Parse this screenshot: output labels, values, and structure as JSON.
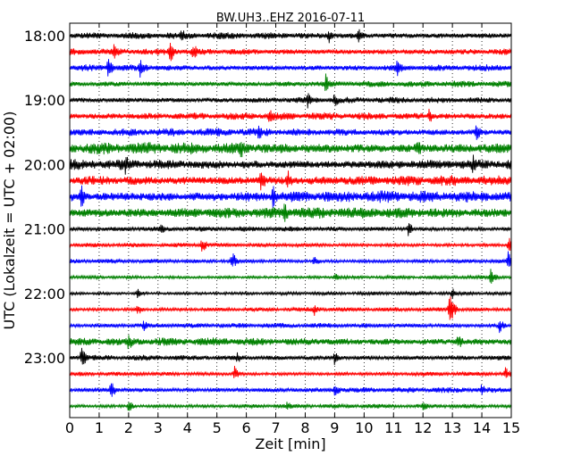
{
  "chart_data": {
    "type": "line",
    "title": "BW.UH3..EHZ 2016-07-11",
    "xlabel": "Zeit  [min]",
    "ylabel": "UTC (Lokalzeit = UTC + 02:00)",
    "xlim": [
      0,
      15
    ],
    "x_ticks": [
      "0",
      "1",
      "2",
      "3",
      "4",
      "5",
      "6",
      "7",
      "8",
      "9",
      "10",
      "11",
      "12",
      "13",
      "14",
      "15"
    ],
    "y_tick_labels": [
      "18:00",
      "19:00",
      "20:00",
      "21:00",
      "22:00",
      "23:00"
    ],
    "grid": "vertical-dotted",
    "trace_colors": [
      "#000000",
      "#ff0000",
      "#0000ff",
      "#008000"
    ],
    "series": [
      {
        "start": "17:45",
        "amplitude": 0.55,
        "color": "#000000",
        "events": [
          [
            3.8,
            1.4
          ],
          [
            8.8,
            1.6
          ],
          [
            9.8,
            1.4
          ]
        ]
      },
      {
        "start": "18:00",
        "amplitude": 0.55,
        "color": "#ff0000",
        "events": [
          [
            1.5,
            1.8
          ],
          [
            3.4,
            2.2
          ],
          [
            4.2,
            1.6
          ]
        ]
      },
      {
        "start": "18:15",
        "amplitude": 0.55,
        "color": "#0000ff",
        "events": [
          [
            1.3,
            1.9
          ],
          [
            2.4,
            2.2
          ],
          [
            11.1,
            1.9
          ]
        ]
      },
      {
        "start": "18:30",
        "amplitude": 0.5,
        "color": "#008000",
        "events": [
          [
            8.7,
            2.0
          ]
        ]
      },
      {
        "start": "18:45",
        "amplitude": 0.5,
        "color": "#000000",
        "events": [
          [
            8.1,
            2.0
          ],
          [
            9.0,
            1.6
          ]
        ]
      },
      {
        "start": "19:00",
        "amplitude": 0.6,
        "color": "#ff0000",
        "events": [
          [
            6.8,
            1.6
          ],
          [
            12.2,
            1.4
          ]
        ]
      },
      {
        "start": "19:15",
        "amplitude": 0.65,
        "color": "#0000ff",
        "events": [
          [
            6.4,
            1.4
          ],
          [
            13.8,
            1.4
          ]
        ]
      },
      {
        "start": "19:30",
        "amplitude": 0.95,
        "color": "#008000",
        "events": [
          [
            5.8,
            1.2
          ],
          [
            11.8,
            1.2
          ]
        ]
      },
      {
        "start": "19:45",
        "amplitude": 0.85,
        "color": "#000000",
        "events": [
          [
            1.9,
            1.3
          ],
          [
            13.7,
            1.2
          ]
        ]
      },
      {
        "start": "20:00",
        "amplitude": 0.85,
        "color": "#ff0000",
        "events": [
          [
            6.5,
            1.4
          ],
          [
            7.4,
            1.3
          ]
        ]
      },
      {
        "start": "20:15",
        "amplitude": 0.95,
        "color": "#0000ff",
        "events": [
          [
            6.9,
            1.4
          ],
          [
            0.4,
            1.3
          ]
        ]
      },
      {
        "start": "20:30",
        "amplitude": 0.9,
        "color": "#008000",
        "events": [
          [
            7.3,
            1.3
          ]
        ]
      },
      {
        "start": "20:45",
        "amplitude": 0.4,
        "color": "#000000",
        "events": [
          [
            11.5,
            1.8
          ],
          [
            3.1,
            1.5
          ]
        ]
      },
      {
        "start": "21:00",
        "amplitude": 0.35,
        "color": "#ff0000",
        "events": [
          [
            4.5,
            2.2
          ],
          [
            14.9,
            2.4
          ]
        ]
      },
      {
        "start": "21:15",
        "amplitude": 0.35,
        "color": "#0000ff",
        "events": [
          [
            5.5,
            3.0
          ],
          [
            14.9,
            4.0
          ],
          [
            8.3,
            1.8
          ]
        ]
      },
      {
        "start": "21:30",
        "amplitude": 0.3,
        "color": "#008000",
        "events": [
          [
            14.3,
            3.0
          ],
          [
            9.0,
            1.6
          ]
        ]
      },
      {
        "start": "21:45",
        "amplitude": 0.3,
        "color": "#000000",
        "events": [
          [
            2.3,
            2.0
          ],
          [
            13.0,
            2.2
          ]
        ]
      },
      {
        "start": "22:00",
        "amplitude": 0.35,
        "color": "#ff0000",
        "events": [
          [
            12.9,
            4.5
          ],
          [
            8.3,
            2.0
          ],
          [
            2.3,
            1.8
          ]
        ]
      },
      {
        "start": "22:15",
        "amplitude": 0.4,
        "color": "#0000ff",
        "events": [
          [
            2.5,
            1.6
          ],
          [
            14.6,
            1.8
          ]
        ]
      },
      {
        "start": "22:30",
        "amplitude": 0.65,
        "color": "#008000",
        "events": [
          [
            2.0,
            1.4
          ],
          [
            13.2,
            1.3
          ]
        ]
      },
      {
        "start": "22:45",
        "amplitude": 0.45,
        "color": "#000000",
        "events": [
          [
            0.4,
            2.6
          ],
          [
            5.7,
            1.4
          ],
          [
            9.0,
            1.6
          ]
        ]
      },
      {
        "start": "23:00",
        "amplitude": 0.35,
        "color": "#ff0000",
        "events": [
          [
            5.6,
            2.2
          ],
          [
            14.8,
            2.0
          ]
        ]
      },
      {
        "start": "23:15",
        "amplitude": 0.45,
        "color": "#0000ff",
        "events": [
          [
            1.4,
            2.2
          ],
          [
            9.0,
            1.7
          ],
          [
            14.0,
            1.6
          ]
        ]
      },
      {
        "start": "23:30",
        "amplitude": 0.35,
        "color": "#008000",
        "events": [
          [
            2.0,
            1.8
          ],
          [
            7.4,
            1.6
          ],
          [
            12.0,
            1.6
          ]
        ]
      }
    ]
  }
}
